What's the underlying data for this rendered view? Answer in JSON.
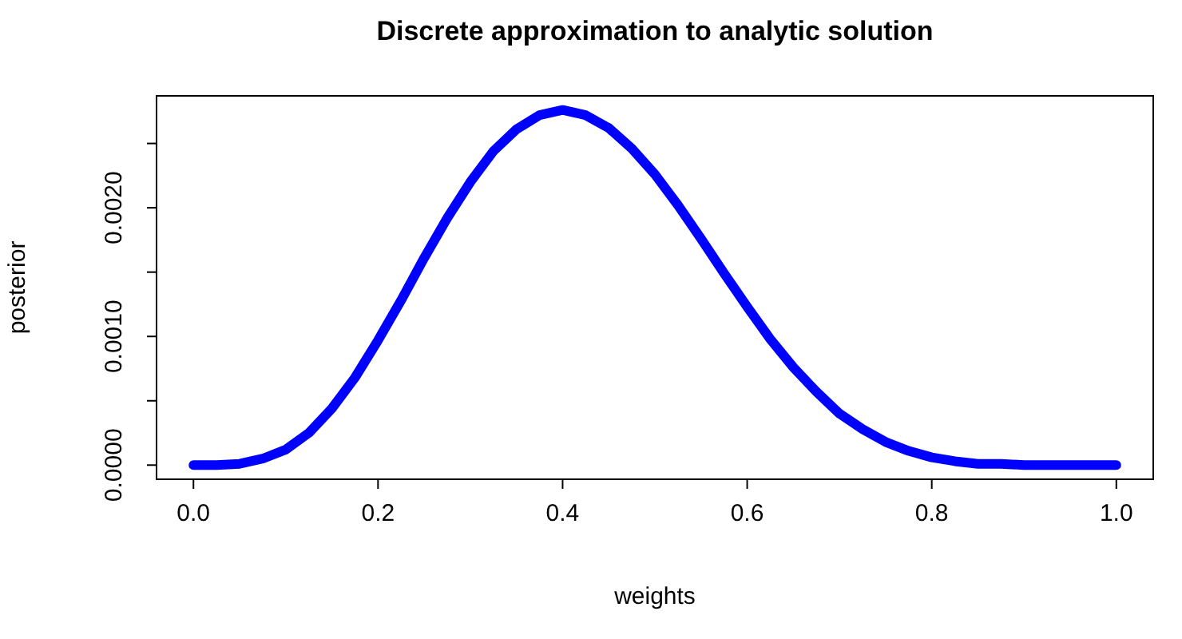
{
  "chart_data": {
    "type": "line",
    "title": "Discrete approximation to analytic solution",
    "xlabel": "weights",
    "ylabel": "posterior",
    "x": [
      0,
      0.025,
      0.05,
      0.075,
      0.1,
      0.125,
      0.15,
      0.175,
      0.2,
      0.225,
      0.25,
      0.275,
      0.3,
      0.325,
      0.35,
      0.375,
      0.4,
      0.425,
      0.45,
      0.475,
      0.5,
      0.525,
      0.55,
      0.575,
      0.6,
      0.625,
      0.65,
      0.675,
      0.7,
      0.725,
      0.75,
      0.775,
      0.8,
      0.825,
      0.85,
      0.875,
      0.9,
      0.95,
      1
    ],
    "series": [
      {
        "color": "#0000ff",
        "values": [
          0,
          0,
          1e-05,
          5e-05,
          0.00012,
          0.00025,
          0.00044,
          0.00068,
          0.00097,
          0.00128,
          0.00161,
          0.00192,
          0.0022,
          0.00244,
          0.00261,
          0.00272,
          0.00276,
          0.00272,
          0.00262,
          0.00246,
          0.00226,
          0.00202,
          0.00176,
          0.00149,
          0.00123,
          0.00098,
          0.00076,
          0.00057,
          0.0004,
          0.00028,
          0.00018,
          0.00011,
          6e-05,
          3e-05,
          1e-05,
          1e-05,
          0,
          0,
          0
        ]
      }
    ],
    "xlim": [
      -0.04,
      1.04
    ],
    "xticks": [
      {
        "value": 0,
        "label": "0.0"
      },
      {
        "value": 0.2,
        "label": "0.2"
      },
      {
        "value": 0.4,
        "label": "0.4"
      },
      {
        "value": 0.6,
        "label": "0.6"
      },
      {
        "value": 0.8,
        "label": "0.8"
      },
      {
        "value": 1,
        "label": "1.0"
      }
    ],
    "ylim": [
      -0.00011,
      0.00287
    ],
    "yticks": [
      {
        "value": 0,
        "label": "0.0000"
      },
      {
        "value": 0.0005,
        "label": null
      },
      {
        "value": 0.001,
        "label": "0.0010"
      },
      {
        "value": 0.0015,
        "label": null
      },
      {
        "value": 0.002,
        "label": "0.0020"
      },
      {
        "value": 0.0025,
        "label": null
      }
    ]
  }
}
